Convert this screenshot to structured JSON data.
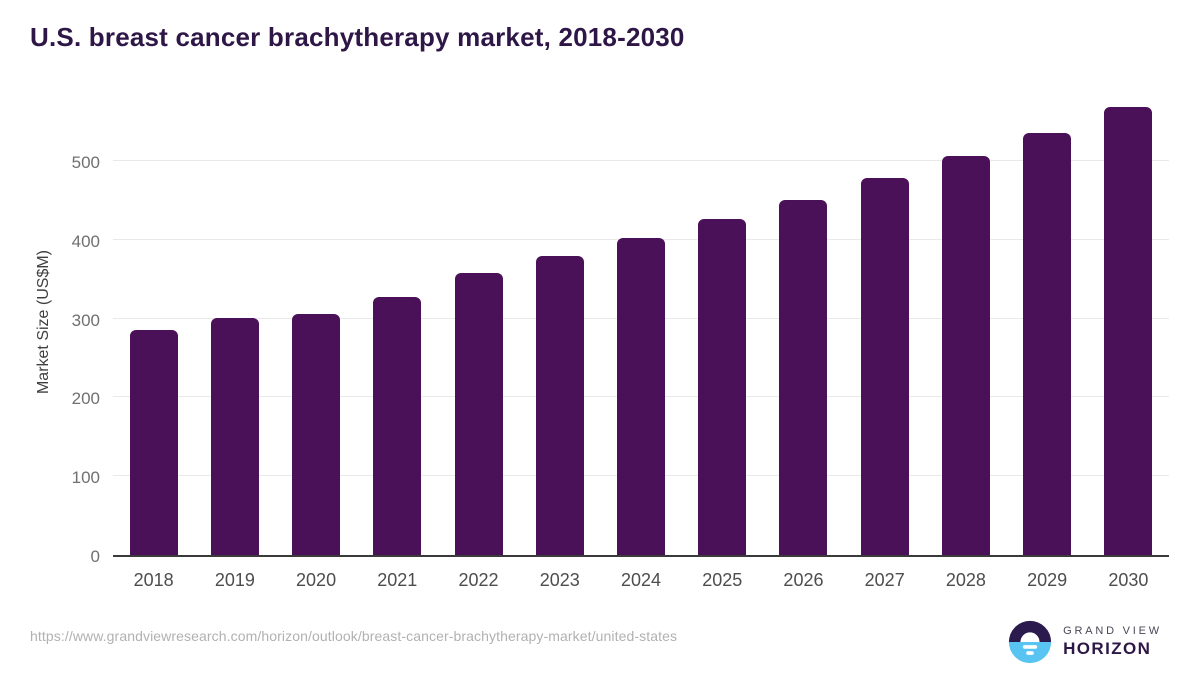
{
  "title": "U.S. breast cancer brachytherapy market, 2018-2030",
  "chart_data": {
    "type": "bar",
    "title": "U.S. breast cancer brachytherapy market, 2018-2030",
    "categories": [
      "2018",
      "2019",
      "2020",
      "2021",
      "2022",
      "2023",
      "2024",
      "2025",
      "2026",
      "2027",
      "2028",
      "2029",
      "2030"
    ],
    "values": [
      285,
      301,
      306,
      328,
      358,
      380,
      402,
      426,
      451,
      478,
      506,
      536,
      568
    ],
    "xlabel": "",
    "ylabel": "Market Size (US$M)",
    "ylim": [
      0,
      580
    ],
    "yticks": [
      0,
      100,
      200,
      300,
      400,
      500
    ],
    "grid": "horizontal-only",
    "legend": "none",
    "bar_color": "#4a1158"
  },
  "footer": {
    "source_url": "https://www.grandviewresearch.com/horizon/outlook/breast-cancer-brachytherapy-market/united-states",
    "logo": {
      "line1": "GRAND VIEW",
      "line2": "HORIZON"
    }
  },
  "colors": {
    "title_text": "#2e1747",
    "bar": "#4a1158",
    "axis_line": "#3a3a3a",
    "gridline": "#e9e9e9",
    "y_tick_text": "#707070",
    "x_tick_text": "#4d4d4d",
    "url_text": "#b1b1b1",
    "logo_purple": "#2b1a4e",
    "logo_blue": "#58c4f2"
  }
}
